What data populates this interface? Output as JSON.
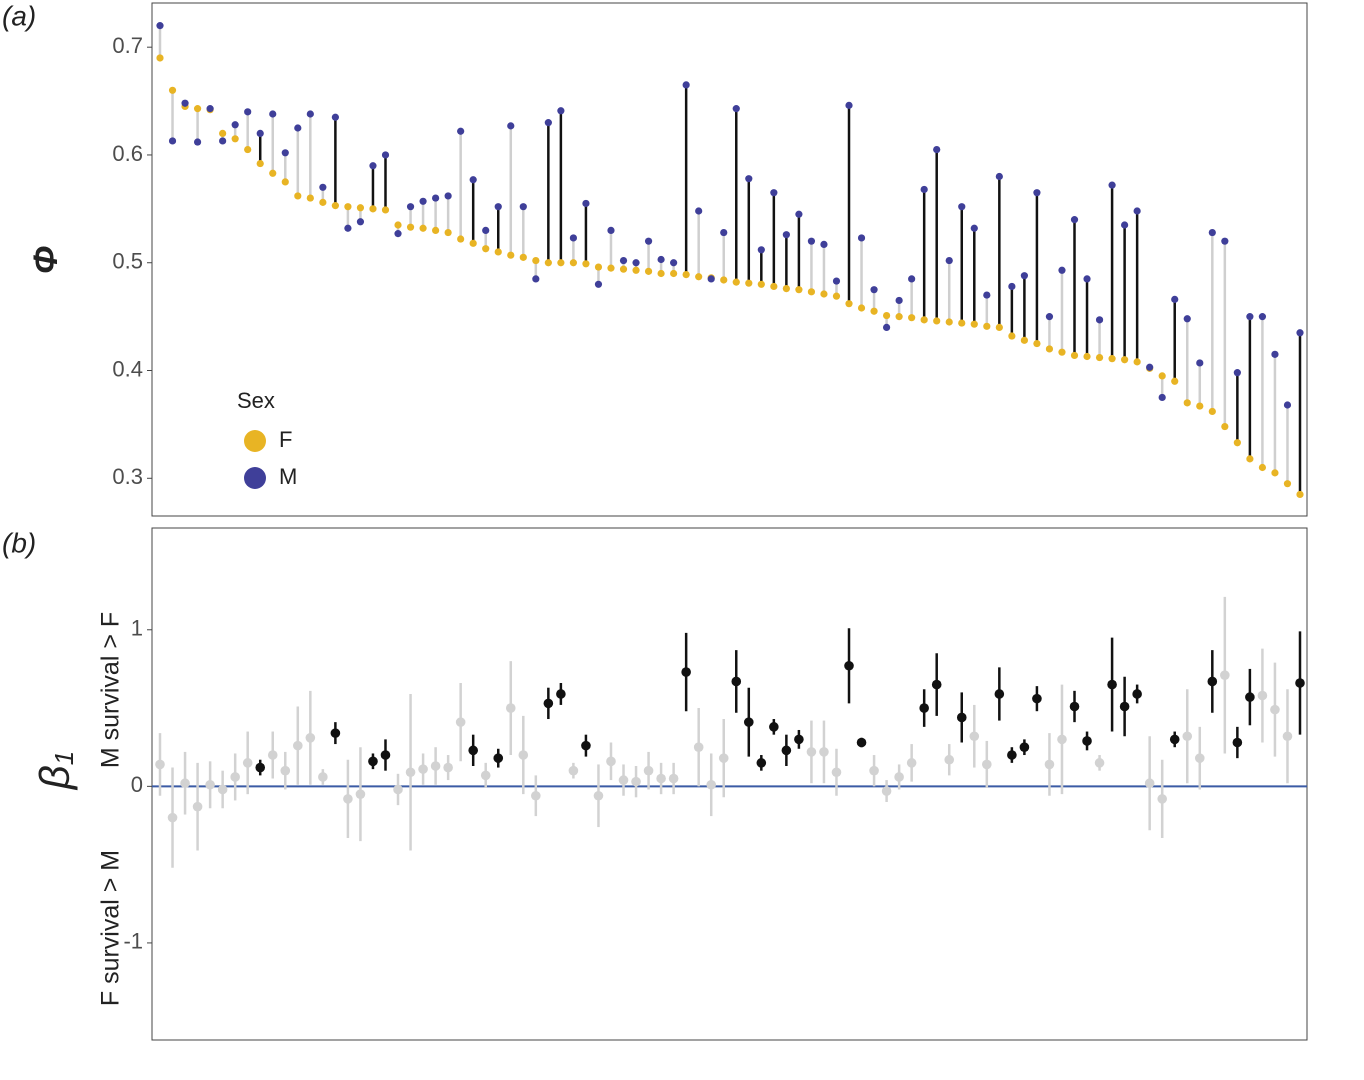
{
  "chart_data": [
    {
      "type": "lollipop",
      "panel_label": "(a)",
      "ylabel": "Φ",
      "ylim": [
        0.265,
        0.741
      ],
      "yticks": [
        0.3,
        0.4,
        0.5,
        0.6,
        0.7
      ],
      "legend_title": "Sex",
      "legend_position": "bottom-left",
      "significant_color": "#111111",
      "nonsignificant_color": "#cfcfcf",
      "series": [
        {
          "name": "F",
          "color": "#e8b424",
          "values": [
            0.69,
            0.66,
            0.645,
            0.643,
            0.642,
            0.62,
            0.615,
            0.605,
            0.592,
            0.583,
            0.575,
            0.562,
            0.56,
            0.556,
            0.553,
            0.552,
            0.551,
            0.55,
            0.549,
            0.535,
            0.533,
            0.532,
            0.53,
            0.528,
            0.522,
            0.518,
            0.513,
            0.51,
            0.507,
            0.505,
            0.502,
            0.5,
            0.5,
            0.5,
            0.499,
            0.496,
            0.495,
            0.494,
            0.493,
            0.492,
            0.49,
            0.49,
            0.489,
            0.487,
            0.486,
            0.484,
            0.482,
            0.481,
            0.48,
            0.478,
            0.476,
            0.475,
            0.473,
            0.471,
            0.469,
            0.462,
            0.458,
            0.455,
            0.451,
            0.45,
            0.449,
            0.447,
            0.446,
            0.445,
            0.444,
            0.443,
            0.441,
            0.44,
            0.432,
            0.428,
            0.425,
            0.42,
            0.417,
            0.414,
            0.413,
            0.412,
            0.411,
            0.41,
            0.408,
            0.402,
            0.395,
            0.39,
            0.37,
            0.367,
            0.362,
            0.348,
            0.333,
            0.318,
            0.31,
            0.305,
            0.295,
            0.285
          ]
        },
        {
          "name": "M",
          "color": "#3f3f99",
          "values": [
            0.72,
            0.613,
            0.648,
            0.612,
            0.643,
            0.613,
            0.628,
            0.64,
            0.62,
            0.638,
            0.602,
            0.625,
            0.638,
            0.57,
            0.635,
            0.532,
            0.538,
            0.59,
            0.6,
            0.527,
            0.552,
            0.557,
            0.56,
            0.562,
            0.622,
            0.577,
            0.53,
            0.552,
            0.627,
            0.552,
            0.485,
            0.63,
            0.641,
            0.523,
            0.555,
            0.48,
            0.53,
            0.502,
            0.5,
            0.52,
            0.503,
            0.5,
            0.665,
            0.548,
            0.485,
            0.528,
            0.643,
            0.578,
            0.512,
            0.565,
            0.526,
            0.545,
            0.52,
            0.517,
            0.483,
            0.646,
            0.523,
            0.475,
            0.44,
            0.465,
            0.485,
            0.568,
            0.605,
            0.502,
            0.552,
            0.532,
            0.47,
            0.58,
            0.478,
            0.488,
            0.565,
            0.45,
            0.493,
            0.54,
            0.485,
            0.447,
            0.572,
            0.535,
            0.548,
            0.403,
            0.375,
            0.466,
            0.448,
            0.407,
            0.528,
            0.52,
            0.398,
            0.45,
            0.45,
            0.415,
            0.368,
            0.435
          ]
        }
      ],
      "significant": [
        false,
        false,
        false,
        false,
        false,
        false,
        false,
        false,
        true,
        false,
        false,
        false,
        false,
        false,
        true,
        false,
        false,
        true,
        true,
        false,
        false,
        false,
        false,
        false,
        false,
        true,
        false,
        true,
        false,
        false,
        false,
        true,
        true,
        false,
        true,
        false,
        false,
        false,
        false,
        false,
        false,
        false,
        true,
        false,
        false,
        false,
        true,
        true,
        true,
        true,
        true,
        true,
        false,
        false,
        false,
        true,
        false,
        false,
        false,
        false,
        false,
        true,
        true,
        false,
        true,
        true,
        false,
        true,
        true,
        true,
        true,
        false,
        false,
        true,
        true,
        false,
        true,
        true,
        true,
        false,
        false,
        true,
        false,
        false,
        false,
        false,
        true,
        true,
        false,
        false,
        false,
        true
      ]
    },
    {
      "type": "errorpoint",
      "panel_label": "(b)",
      "ylabel": "β",
      "ylabel_sub": "1",
      "ylim": [
        -1.62,
        1.65
      ],
      "yticks": [
        -1,
        0,
        1
      ],
      "zero_line_color": "#3b5ba5",
      "annotations": [
        "M survival > F",
        "F survival > M"
      ],
      "significant_color": "#111111",
      "nonsignificant_color": "#d2d2d2",
      "values": [
        0.14,
        -0.2,
        0.02,
        -0.13,
        0.01,
        -0.02,
        0.06,
        0.15,
        0.12,
        0.2,
        0.1,
        0.26,
        0.31,
        0.06,
        0.34,
        -0.08,
        -0.05,
        0.16,
        0.2,
        -0.02,
        0.09,
        0.11,
        0.13,
        0.12,
        0.41,
        0.23,
        0.07,
        0.18,
        0.5,
        0.2,
        -0.06,
        0.53,
        0.59,
        0.1,
        0.26,
        -0.06,
        0.16,
        0.04,
        0.03,
        0.1,
        0.05,
        0.05,
        0.73,
        0.25,
        0.01,
        0.18,
        0.67,
        0.41,
        0.15,
        0.38,
        0.23,
        0.3,
        0.22,
        0.22,
        0.09,
        0.77,
        0.28,
        0.1,
        -0.03,
        0.06,
        0.15,
        0.5,
        0.65,
        0.17,
        0.44,
        0.32,
        0.14,
        0.59,
        0.2,
        0.25,
        0.56,
        0.14,
        0.3,
        0.51,
        0.29,
        0.15,
        0.65,
        0.51,
        0.59,
        0.02,
        -0.08,
        0.3,
        0.32,
        0.18,
        0.67,
        0.71,
        0.28,
        0.57,
        0.58,
        0.49,
        0.32,
        0.66
      ],
      "errors": [
        0.2,
        0.32,
        0.2,
        0.28,
        0.15,
        0.12,
        0.15,
        0.2,
        0.05,
        0.15,
        0.12,
        0.25,
        0.3,
        0.05,
        0.07,
        0.25,
        0.3,
        0.05,
        0.1,
        0.1,
        0.5,
        0.1,
        0.12,
        0.08,
        0.25,
        0.1,
        0.08,
        0.06,
        0.3,
        0.25,
        0.13,
        0.1,
        0.07,
        0.05,
        0.07,
        0.2,
        0.12,
        0.1,
        0.1,
        0.12,
        0.1,
        0.1,
        0.25,
        0.25,
        0.2,
        0.25,
        0.2,
        0.22,
        0.05,
        0.05,
        0.1,
        0.06,
        0.2,
        0.2,
        0.15,
        0.24,
        0.03,
        0.1,
        0.07,
        0.08,
        0.12,
        0.12,
        0.2,
        0.1,
        0.16,
        0.2,
        0.15,
        0.17,
        0.05,
        0.05,
        0.08,
        0.2,
        0.35,
        0.1,
        0.06,
        0.05,
        0.3,
        0.19,
        0.06,
        0.3,
        0.25,
        0.05,
        0.3,
        0.2,
        0.2,
        0.5,
        0.1,
        0.18,
        0.3,
        0.3,
        0.3,
        0.33
      ],
      "significant": [
        false,
        false,
        false,
        false,
        false,
        false,
        false,
        false,
        true,
        false,
        false,
        false,
        false,
        false,
        true,
        false,
        false,
        true,
        true,
        false,
        false,
        false,
        false,
        false,
        false,
        true,
        false,
        true,
        false,
        false,
        false,
        true,
        true,
        false,
        true,
        false,
        false,
        false,
        false,
        false,
        false,
        false,
        true,
        false,
        false,
        false,
        true,
        true,
        true,
        true,
        true,
        true,
        false,
        false,
        false,
        true,
        true,
        false,
        false,
        false,
        false,
        true,
        true,
        false,
        true,
        false,
        false,
        true,
        true,
        true,
        true,
        false,
        false,
        true,
        true,
        false,
        true,
        true,
        true,
        false,
        false,
        true,
        false,
        false,
        true,
        false,
        true,
        true,
        false,
        false,
        false,
        true
      ]
    }
  ]
}
